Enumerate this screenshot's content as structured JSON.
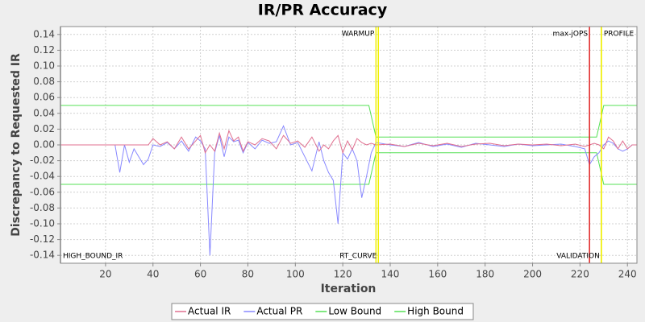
{
  "chart_data": {
    "type": "line",
    "title": "IR/PR Accuracy",
    "x_label": "Iteration",
    "y_label": "Discrepancy to Requested IR",
    "xlim": [
      1,
      244
    ],
    "ylim": [
      -0.15,
      0.15
    ],
    "xticks": [
      20,
      40,
      60,
      80,
      100,
      120,
      140,
      160,
      180,
      200,
      220,
      240
    ],
    "yticks": [
      0.14,
      0.12,
      {
        "value": 0.1,
        "label": "0.10"
      },
      0.08,
      0.06,
      0.04,
      0.02,
      {
        "value": 0,
        "label": "0.00"
      },
      -0.02,
      -0.04,
      -0.06,
      -0.08,
      {
        "value": -0.1,
        "label": "-0.10"
      },
      -0.12,
      -0.14
    ],
    "grid": true,
    "series": [
      {
        "name": "Actual IR",
        "color": "#e07090",
        "x": [
          1,
          10,
          20,
          24,
          26,
          28,
          30,
          32,
          34,
          36,
          38,
          40,
          43,
          46,
          49,
          52,
          55,
          58,
          60,
          62,
          64,
          66,
          68,
          70,
          72,
          74,
          76,
          78,
          80,
          83,
          86,
          89,
          92,
          95,
          98,
          101,
          104,
          107,
          110,
          112,
          114,
          116,
          118,
          120,
          122,
          124,
          126,
          128,
          130,
          132,
          134,
          140,
          146,
          152,
          158,
          164,
          170,
          176,
          182,
          188,
          194,
          200,
          206,
          212,
          218,
          222,
          224,
          226,
          228,
          230,
          232,
          234,
          236,
          238,
          240,
          242,
          244
        ],
        "values": [
          0,
          0,
          0,
          0,
          0,
          0,
          0,
          0,
          0,
          0,
          0,
          0.008,
          0,
          0.004,
          -0.005,
          0.01,
          -0.005,
          0.005,
          0.012,
          -0.01,
          0,
          -0.008,
          0.015,
          -0.005,
          0.018,
          0.005,
          0.01,
          -0.008,
          0.004,
          0,
          0.008,
          0.005,
          -0.005,
          0.012,
          0.002,
          0.005,
          -0.003,
          0.01,
          -0.008,
          0,
          -0.005,
          0.005,
          0.012,
          -0.01,
          0.005,
          -0.006,
          0.008,
          0.003,
          0,
          0.002,
          0,
          0.001,
          -0.002,
          0.002,
          -0.001,
          0.002,
          -0.002,
          0.001,
          0.002,
          -0.001,
          0.001,
          0,
          0.001,
          -0.001,
          0.001,
          -0.002,
          0,
          0.002,
          0,
          -0.005,
          0.01,
          0.005,
          -0.005,
          0.005,
          -0.005,
          0,
          0
        ]
      },
      {
        "name": "Actual PR",
        "color": "#8888ff",
        "x": [
          1,
          10,
          20,
          24,
          26,
          28,
          30,
          32,
          34,
          36,
          38,
          40,
          43,
          46,
          49,
          52,
          55,
          58,
          60,
          62,
          64,
          66,
          68,
          70,
          72,
          74,
          76,
          78,
          80,
          83,
          86,
          89,
          92,
          95,
          98,
          101,
          104,
          107,
          110,
          112,
          114,
          116,
          118,
          120,
          122,
          124,
          126,
          128,
          130,
          132,
          134,
          140,
          146,
          152,
          158,
          164,
          170,
          176,
          182,
          188,
          194,
          200,
          206,
          212,
          218,
          222,
          224,
          226,
          228,
          230,
          232,
          234,
          236,
          238,
          240,
          242,
          244
        ],
        "values": [
          0,
          0,
          0,
          0,
          -0.035,
          0,
          -0.022,
          -0.005,
          -0.015,
          -0.025,
          -0.018,
          0,
          -0.002,
          0.003,
          -0.005,
          0.005,
          -0.008,
          0.01,
          0.005,
          -0.005,
          -0.14,
          -0.01,
          0.012,
          -0.015,
          0.01,
          0.004,
          0.006,
          -0.01,
          0.003,
          -0.005,
          0.006,
          0.002,
          0.004,
          0.024,
          0,
          0.003,
          -0.015,
          -0.033,
          0.004,
          -0.02,
          -0.035,
          -0.045,
          -0.1,
          -0.01,
          -0.018,
          -0.005,
          -0.02,
          -0.067,
          -0.04,
          -0.01,
          0.003,
          0,
          -0.002,
          0.003,
          -0.002,
          0.001,
          -0.003,
          0.002,
          0,
          -0.002,
          0.001,
          -0.001,
          0,
          0.001,
          -0.002,
          -0.005,
          -0.025,
          -0.015,
          -0.01,
          0,
          0.005,
          0.002,
          -0.005,
          -0.008,
          -0.005,
          0,
          0
        ]
      },
      {
        "name": "Low Bound",
        "color": "#55e055",
        "x": [
          1,
          131,
          134,
          227,
          230,
          244
        ],
        "values": [
          -0.05,
          -0.05,
          -0.01,
          -0.01,
          -0.05,
          -0.05
        ]
      },
      {
        "name": "High Bound",
        "color": "#55e055",
        "x": [
          1,
          131,
          134,
          227,
          230,
          244
        ],
        "values": [
          0.05,
          0.05,
          0.01,
          0.01,
          0.05,
          0.05
        ]
      }
    ],
    "markers": [
      {
        "label": "WARMUP",
        "x": 134,
        "color": "#f0f000",
        "position": "top",
        "align": "left"
      },
      {
        "label": "RT_CURVE",
        "x": 135,
        "color": "#f0f000",
        "position": "bottom",
        "align": "left"
      },
      {
        "label": "max-jOPS",
        "x": 224,
        "color": "#e02020",
        "position": "top",
        "align": "left"
      },
      {
        "label": "VALIDATION",
        "x": 229,
        "color": "#f0f000",
        "position": "bottom",
        "align": "left"
      },
      {
        "label": "PROFILE",
        "x": 229,
        "color": "#f0f000",
        "position": "top",
        "align": "right"
      },
      {
        "label": "HIGH_BOUND_IR",
        "x": 1,
        "color": "#808080",
        "position": "bottom",
        "align": "right"
      }
    ]
  }
}
